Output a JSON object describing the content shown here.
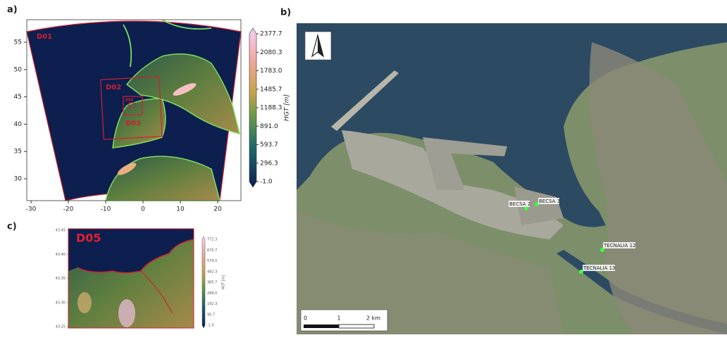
{
  "panel_a": {
    "label": "a)",
    "domains": [
      "D01",
      "D02",
      "D03",
      "D04"
    ],
    "yticks": [
      "55",
      "50",
      "45",
      "40",
      "35",
      "30"
    ],
    "xticks": [
      "-30",
      "-20",
      "-10",
      "0",
      "10",
      "20"
    ],
    "colorbar": {
      "ticks": [
        "2377.7",
        "2080.3",
        "1783.0",
        "1485.7",
        "1188.3",
        "891.0",
        "593.7",
        "296.3",
        "-1.0"
      ],
      "label": "HGT [m]"
    }
  },
  "panel_b": {
    "label": "b)",
    "stations": [
      "BECSA 2",
      "BECSA 3",
      "TECNALIA 12",
      "TECNALIA 13"
    ],
    "scale": [
      "0",
      "1",
      "2 km"
    ]
  },
  "panel_c": {
    "label": "c)",
    "domain": "D05",
    "yticks": [
      "43.45",
      "43.40",
      "43.35",
      "43.30",
      "43.25"
    ],
    "colorbar": {
      "ticks": [
        "772.3",
        "675.7",
        "579.0",
        "482.3",
        "385.7",
        "289.0",
        "192.3",
        "95.7",
        "-1.0"
      ],
      "label": "HGT [m]"
    }
  }
}
